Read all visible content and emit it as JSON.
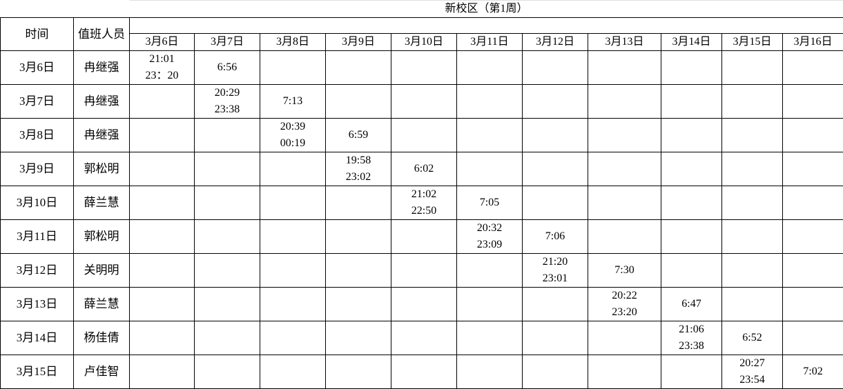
{
  "title": "新校区（第1周）",
  "headers": {
    "time": "时间",
    "person": "值班人员"
  },
  "dates": [
    "3月6日",
    "3月7日",
    "3月8日",
    "3月9日",
    "3月10日",
    "3月11日",
    "3月12日",
    "3月13日",
    "3月14日",
    "3月15日",
    "3月16日"
  ],
  "rows": [
    {
      "date": "3月6日",
      "person": "冉继强",
      "cells": [
        "21:01\n23：20",
        "6:56",
        "",
        "",
        "",
        "",
        "",
        "",
        "",
        "",
        ""
      ]
    },
    {
      "date": "3月7日",
      "person": "冉继强",
      "cells": [
        "",
        "20:29\n23:38",
        "7:13",
        "",
        "",
        "",
        "",
        "",
        "",
        "",
        ""
      ]
    },
    {
      "date": "3月8日",
      "person": "冉继强",
      "cells": [
        "",
        "",
        "20:39\n00:19",
        "6:59",
        "",
        "",
        "",
        "",
        "",
        "",
        ""
      ]
    },
    {
      "date": "3月9日",
      "person": "郭松明",
      "cells": [
        "",
        "",
        "",
        "19:58\n23:02",
        "6:02",
        "",
        "",
        "",
        "",
        "",
        ""
      ]
    },
    {
      "date": "3月10日",
      "person": "薛兰慧",
      "cells": [
        "",
        "",
        "",
        "",
        "21:02\n22:50",
        "7:05",
        "",
        "",
        "",
        "",
        ""
      ]
    },
    {
      "date": "3月11日",
      "person": "郭松明",
      "cells": [
        "",
        "",
        "",
        "",
        "",
        "20:32\n23:09",
        "7:06",
        "",
        "",
        "",
        ""
      ]
    },
    {
      "date": "3月12日",
      "person": "关明明",
      "cells": [
        "",
        "",
        "",
        "",
        "",
        "",
        "21:20\n23:01",
        "7:30",
        "",
        "",
        ""
      ]
    },
    {
      "date": "3月13日",
      "person": "薛兰慧",
      "cells": [
        "",
        "",
        "",
        "",
        "",
        "",
        "",
        "20:22\n23:20",
        "6:47",
        "",
        ""
      ]
    },
    {
      "date": "3月14日",
      "person": "杨佳倩",
      "cells": [
        "",
        "",
        "",
        "",
        "",
        "",
        "",
        "",
        "21:06\n23:38",
        "6:52",
        ""
      ]
    },
    {
      "date": "3月15日",
      "person": "卢佳智",
      "cells": [
        "",
        "",
        "",
        "",
        "",
        "",
        "",
        "",
        "",
        "20:27\n23:54",
        "7:02"
      ]
    }
  ]
}
